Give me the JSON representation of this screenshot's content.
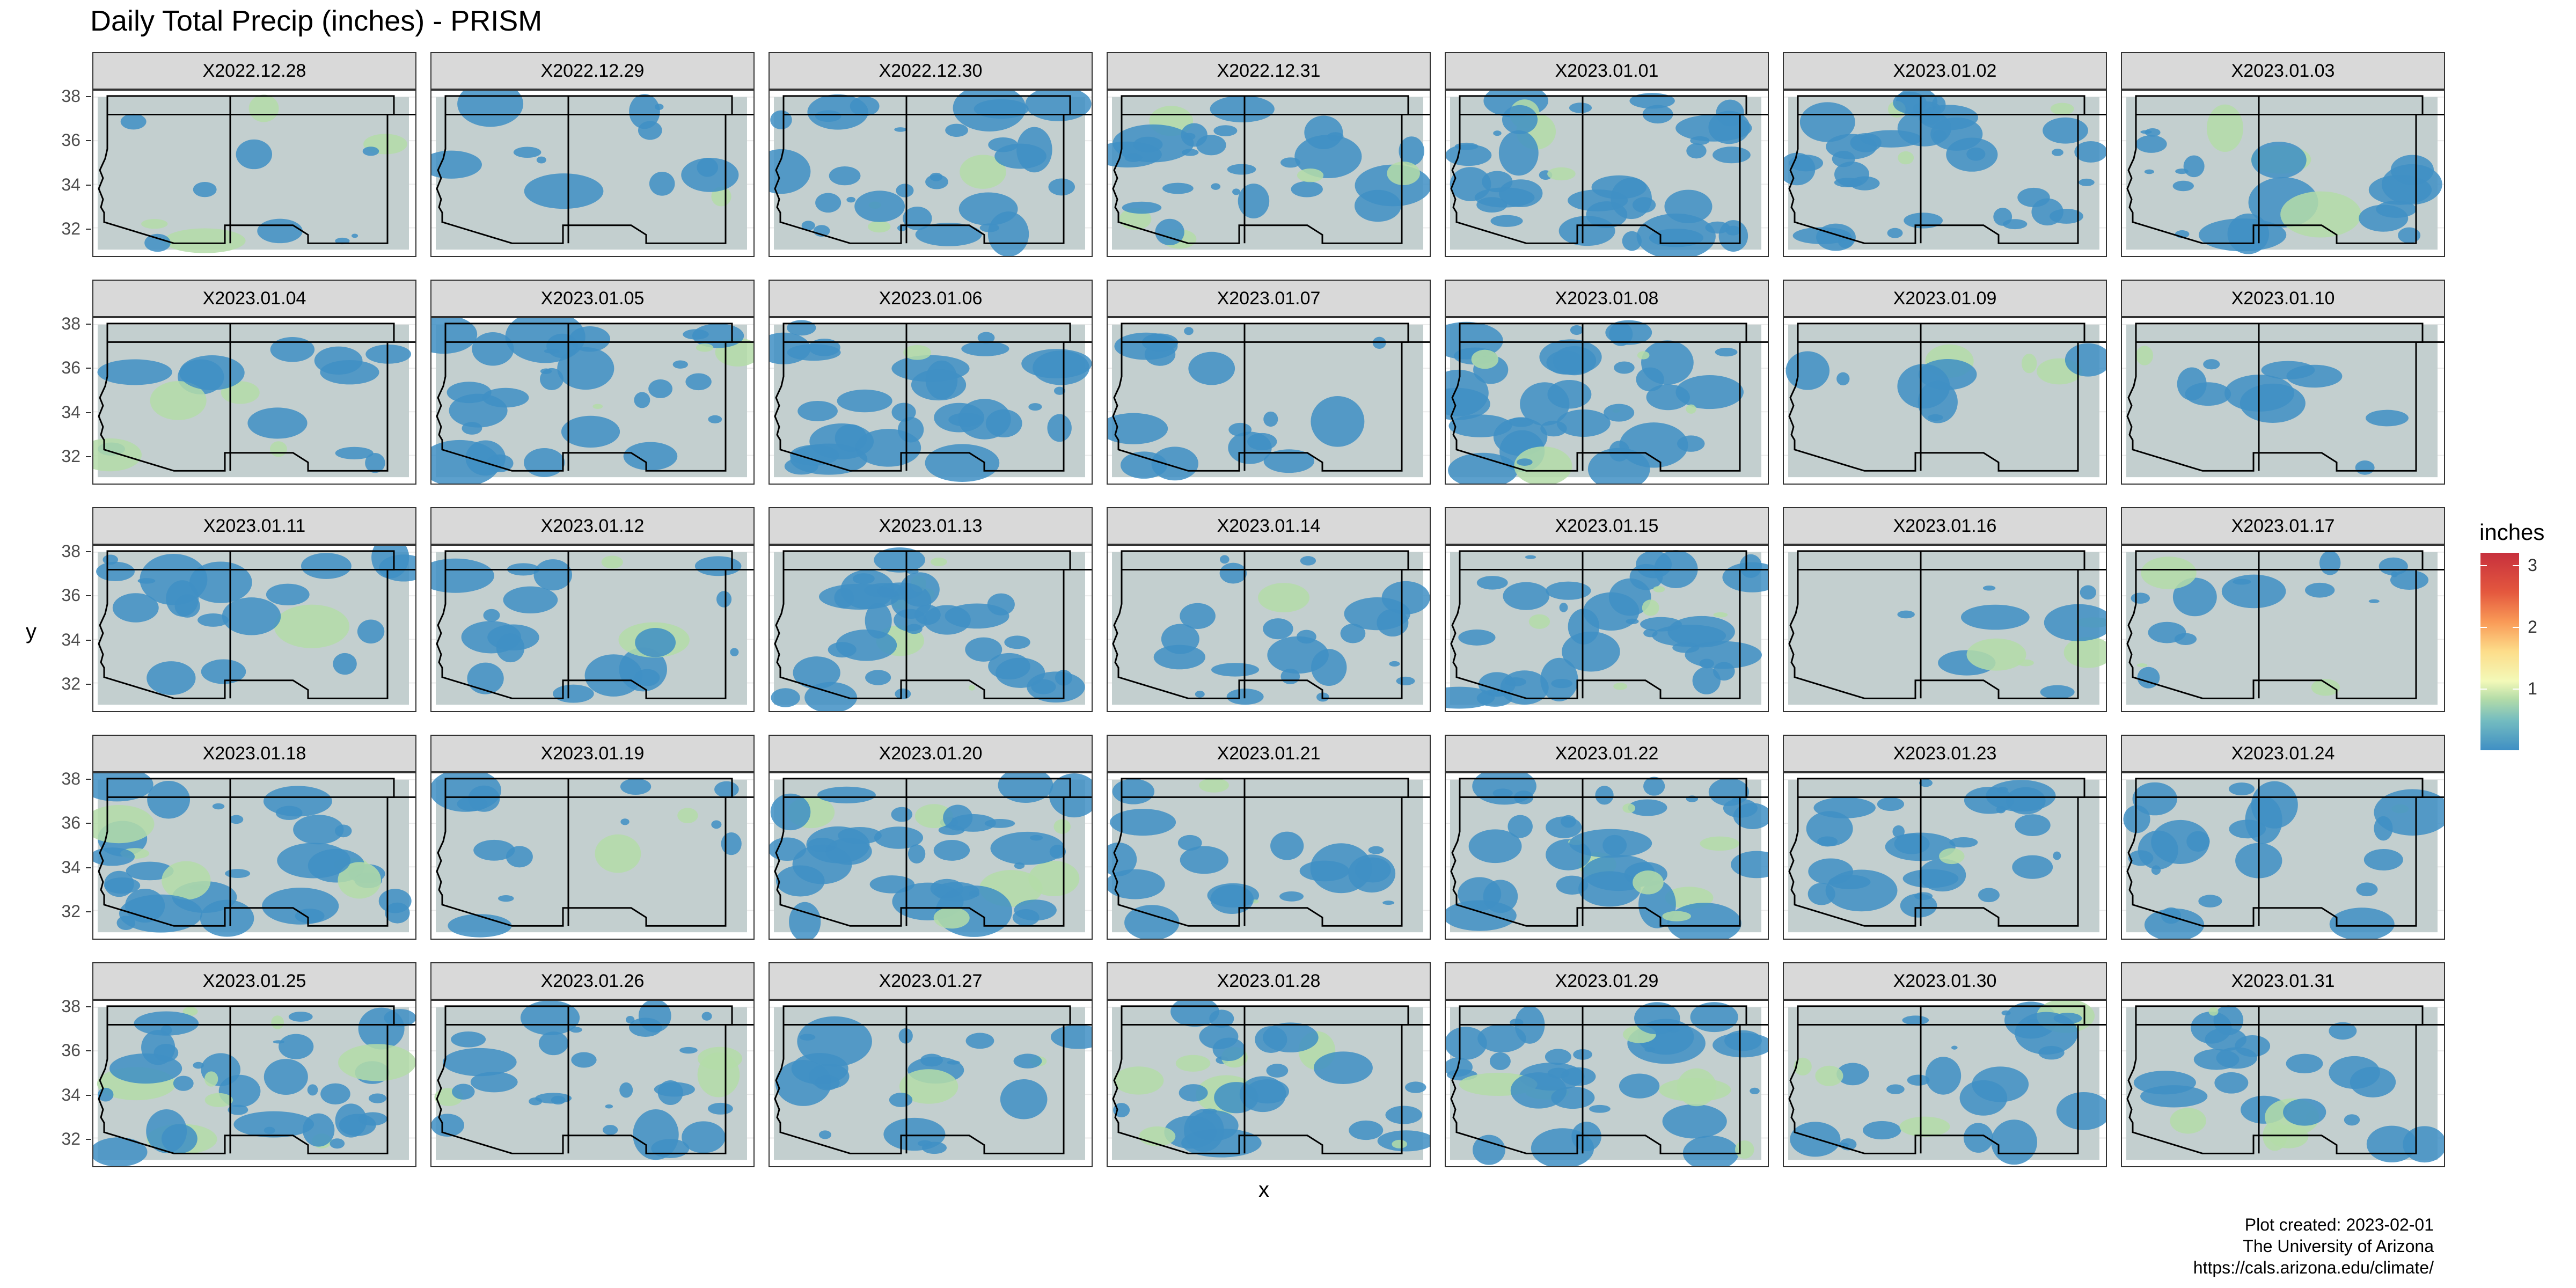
{
  "chart_data": {
    "type": "heatmap",
    "title": "Daily Total Precip (inches) - PRISM",
    "xlabel": "x",
    "ylabel": "y",
    "y_ticks": [
      "32",
      "34",
      "36",
      "38"
    ],
    "y_tick_values": [
      32,
      34,
      36,
      38
    ],
    "ylim": [
      31,
      38
    ],
    "panels": [
      "X2022.12.28",
      "X2022.12.29",
      "X2022.12.30",
      "X2022.12.31",
      "X2023.01.01",
      "X2023.01.02",
      "X2023.01.03",
      "X2023.01.04",
      "X2023.01.05",
      "X2023.01.06",
      "X2023.01.07",
      "X2023.01.08",
      "X2023.01.09",
      "X2023.01.10",
      "X2023.01.11",
      "X2023.01.12",
      "X2023.01.13",
      "X2023.01.14",
      "X2023.01.15",
      "X2023.01.16",
      "X2023.01.17",
      "X2023.01.18",
      "X2023.01.19",
      "X2023.01.20",
      "X2023.01.21",
      "X2023.01.22",
      "X2023.01.23",
      "X2023.01.24",
      "X2023.01.25",
      "X2023.01.26",
      "X2023.01.27",
      "X2023.01.28",
      "X2023.01.29",
      "X2023.01.30",
      "X2023.01.31"
    ],
    "legend": {
      "title": "inches",
      "ticks": [
        "1",
        "2",
        "3"
      ],
      "tick_values": [
        1,
        2,
        3
      ],
      "range": [
        0,
        3.2
      ],
      "colors": [
        "#3f8fc4",
        "#b4dca8",
        "#f3f9b8",
        "#fddd8a",
        "#f99a57",
        "#c7303d"
      ]
    },
    "grid": true,
    "legend_position": "right"
  },
  "caption": {
    "line1": "Plot created: 2023-02-01",
    "line2": "The University of Arizona",
    "line3": "https://cals.arizona.edu/climate/"
  },
  "colors": {
    "map_background": "#c3cfcf",
    "precip_low": "#3f8fc4",
    "precip_mid": "#b4dca8",
    "precip_high": "#c7303d",
    "strip": "#d9d9d9"
  }
}
